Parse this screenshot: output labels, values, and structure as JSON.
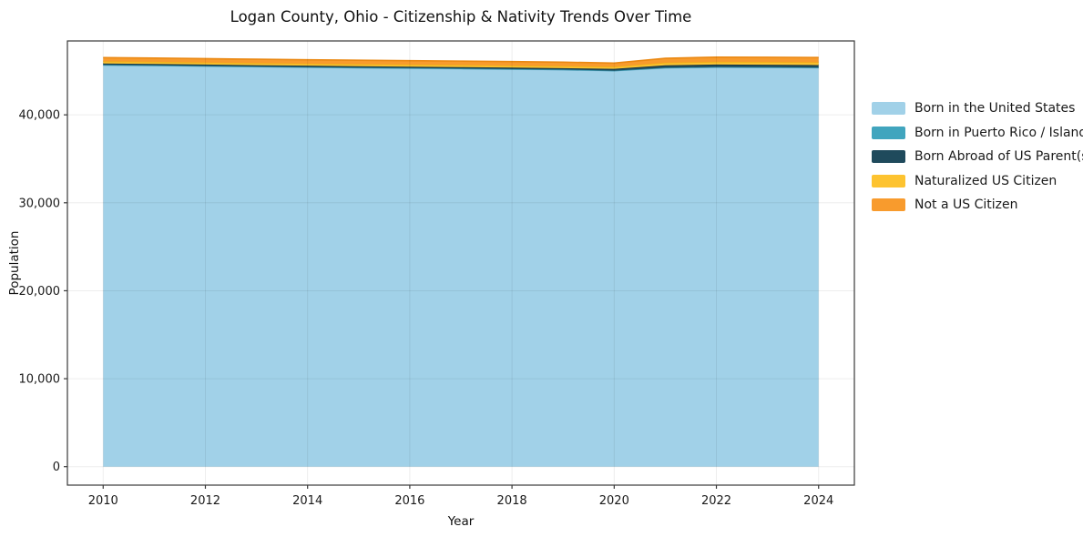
{
  "chart": {
    "title": "Logan County, Ohio - Citizenship & Nativity Trends Over Time",
    "xlabel": "Year",
    "ylabel": "Population"
  },
  "chart_data": {
    "type": "area",
    "stacked": true,
    "title": "Logan County, Ohio - Citizenship & Nativity Trends Over Time",
    "xlabel": "Year",
    "ylabel": "Population",
    "grid": true,
    "legend_position": "right-outside",
    "x": [
      2010,
      2011,
      2012,
      2013,
      2014,
      2015,
      2016,
      2017,
      2018,
      2019,
      2020,
      2021,
      2022,
      2023,
      2024
    ],
    "series": [
      {
        "name": "Born in the United States",
        "color": "#a1d1e8",
        "edge_color": "#84bedb",
        "values": [
          45650,
          45600,
          45530,
          45460,
          45400,
          45340,
          45290,
          45240,
          45180,
          45120,
          45000,
          45320,
          45400,
          45380,
          45340
        ]
      },
      {
        "name": "Born in Puerto Rico / Islands",
        "color": "#41a5be",
        "edge_color": "#3792a9",
        "values": [
          30,
          30,
          30,
          30,
          30,
          30,
          30,
          30,
          30,
          30,
          30,
          40,
          40,
          40,
          40
        ]
      },
      {
        "name": "Born Abroad of US Parent(s)",
        "color": "#1f4a5c",
        "edge_color": "#163745",
        "values": [
          160,
          160,
          160,
          160,
          160,
          160,
          160,
          160,
          160,
          160,
          200,
          270,
          280,
          280,
          280
        ]
      },
      {
        "name": "Naturalized US Citizen",
        "color": "#fdc330",
        "edge_color": "#eeb017",
        "values": [
          240,
          240,
          240,
          240,
          240,
          240,
          240,
          240,
          240,
          240,
          240,
          300,
          310,
          310,
          310
        ]
      },
      {
        "name": "Not a US Citizen",
        "color": "#f89b2d",
        "edge_color": "#ea8812",
        "values": [
          430,
          430,
          430,
          430,
          430,
          440,
          440,
          440,
          440,
          440,
          410,
          500,
          530,
          540,
          550
        ]
      }
    ],
    "xticks": [
      2010,
      2012,
      2014,
      2016,
      2018,
      2020,
      2022,
      2024
    ],
    "xtick_labels": [
      "2010",
      "2012",
      "2014",
      "2016",
      "2018",
      "2020",
      "2022",
      "2024"
    ],
    "yticks": [
      0,
      10000,
      20000,
      30000,
      40000
    ],
    "ytick_labels": [
      "0",
      "10,000",
      "20,000",
      "30,000",
      "40,000"
    ],
    "xlim": [
      2009.3,
      2024.7
    ],
    "ylim": [
      -2100,
      48400
    ],
    "colors": {
      "background": "#ffffff",
      "spine": "#3a3a3a",
      "grid": "rgba(0,0,0,0.07)",
      "tick_text": "#1a1a1a"
    }
  }
}
